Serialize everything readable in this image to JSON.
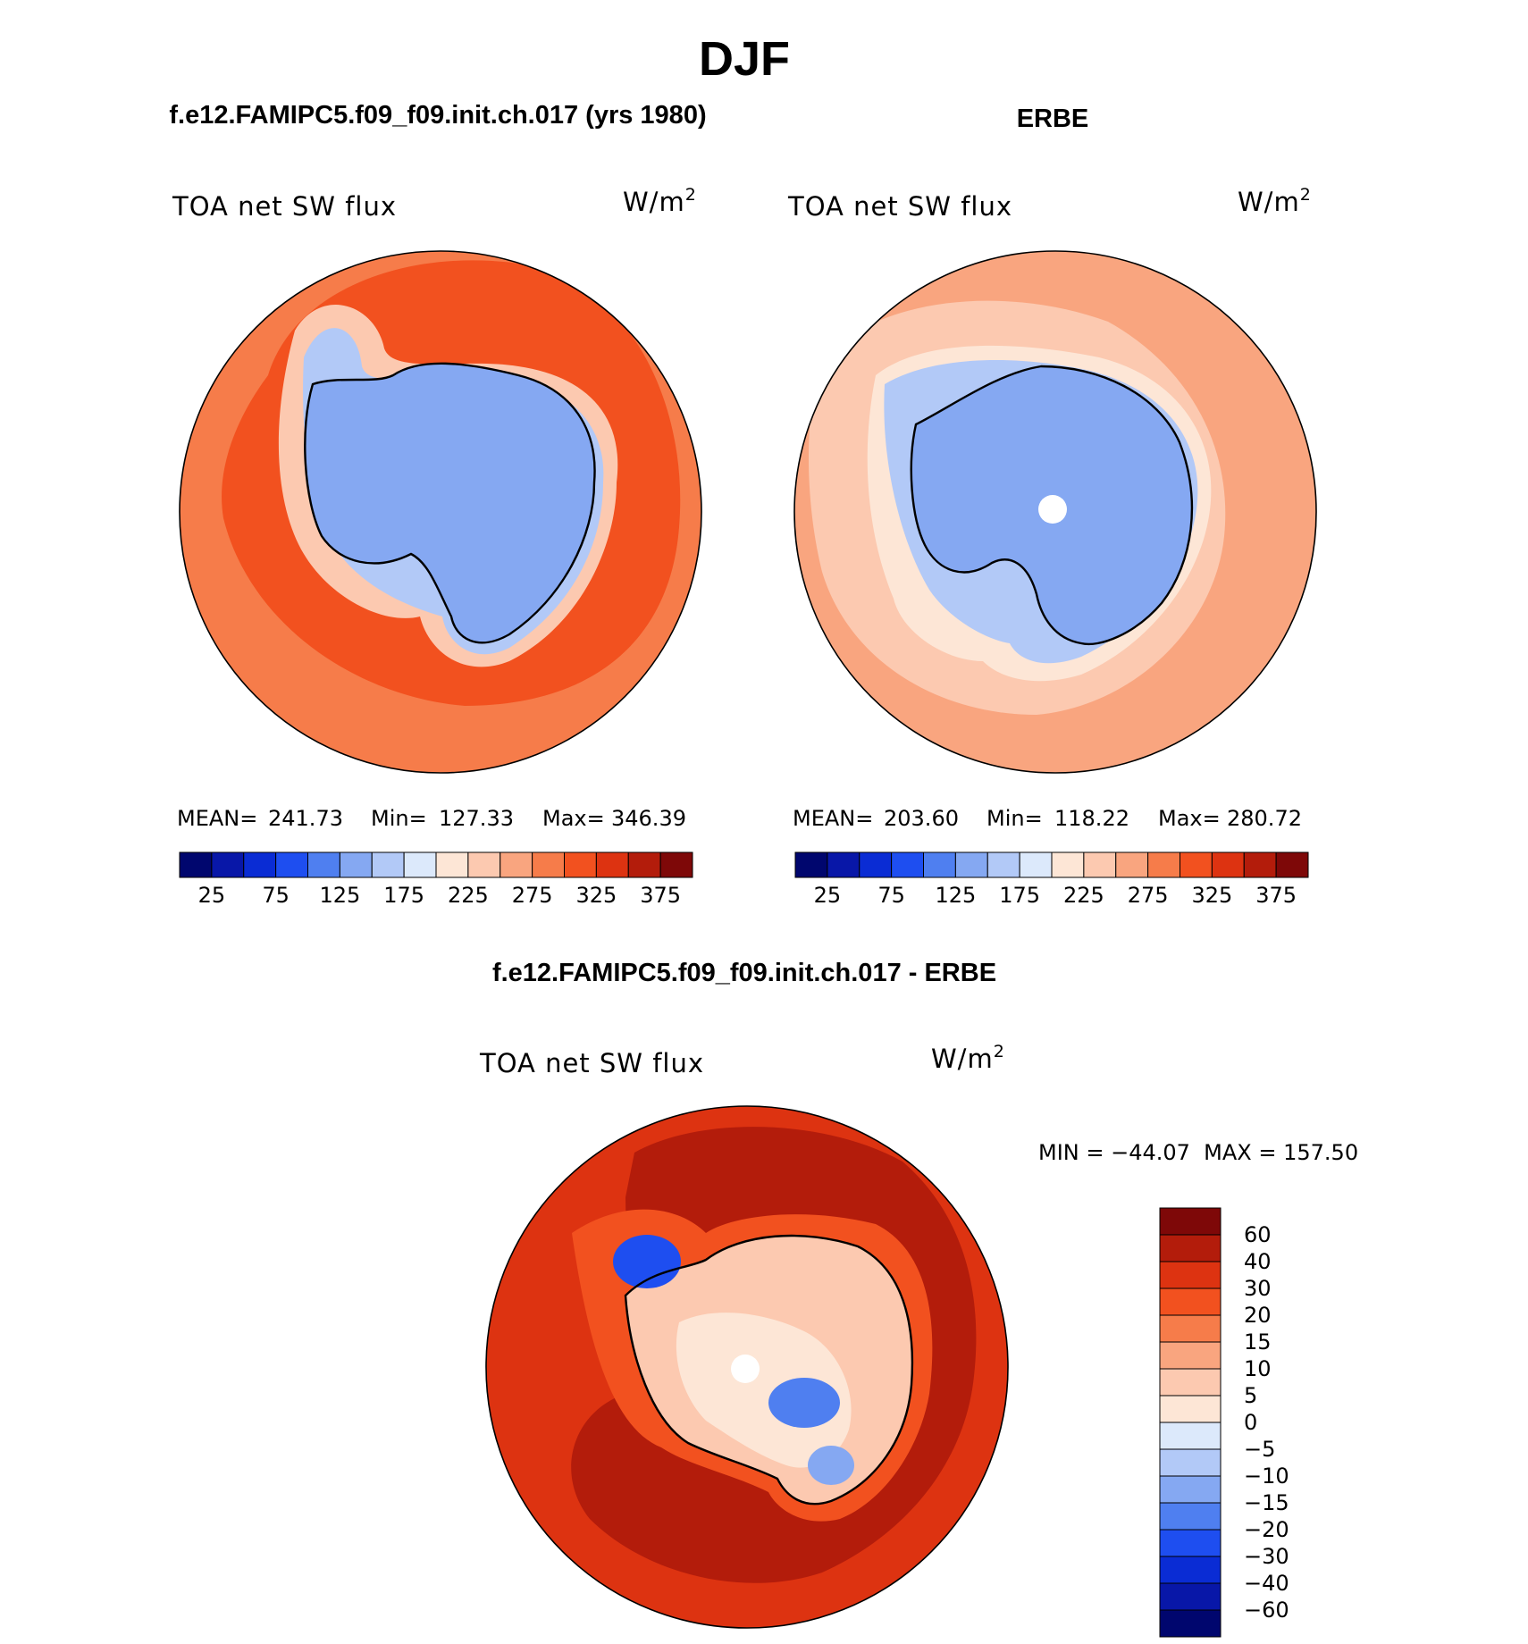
{
  "page": {
    "title": "DJF"
  },
  "chart_data": [
    {
      "type": "polar_contour_map",
      "panel_title": "f.e12.FAMIPC5.f09_f09.init.ch.017 (yrs 1980)",
      "variable": "TOA net SW flux",
      "units_base": "W/m",
      "units_exp": "2",
      "stats": {
        "mean_label": "MEAN=",
        "mean": "241.73",
        "min_label": "Min=",
        "min": "127.33",
        "max_label": "Max=",
        "max": "346.39"
      },
      "colorbar": {
        "orientation": "horizontal",
        "ticks": [
          "25",
          "75",
          "125",
          "175",
          "225",
          "275",
          "325",
          "375"
        ],
        "colors": [
          "#00066e",
          "#0817a8",
          "#0a2cd4",
          "#1e4ef0",
          "#4f7ff0",
          "#85a8f2",
          "#b2c9f7",
          "#dce9fb",
          "#fde6d6",
          "#fcc9b0",
          "#f9a57f",
          "#f67c4a",
          "#f2511f",
          "#dd3311",
          "#b31c0b",
          "#7e0808"
        ]
      },
      "field_colors": {
        "ocean": "#f2511f",
        "ocean_far": "#f67c4a",
        "shelf": "#fcc9b0",
        "coast": "#b2c9f7",
        "ice": "#85a8f2"
      }
    },
    {
      "type": "polar_contour_map",
      "panel_title": "ERBE",
      "variable": "TOA net SW flux",
      "units_base": "W/m",
      "units_exp": "2",
      "stats": {
        "mean_label": "MEAN=",
        "mean": "203.60",
        "min_label": "Min=",
        "min": "118.22",
        "max_label": "Max=",
        "max": "280.72"
      },
      "colorbar": {
        "orientation": "horizontal",
        "ticks": [
          "25",
          "75",
          "125",
          "175",
          "225",
          "275",
          "325",
          "375"
        ],
        "colors": [
          "#00066e",
          "#0817a8",
          "#0a2cd4",
          "#1e4ef0",
          "#4f7ff0",
          "#85a8f2",
          "#b2c9f7",
          "#dce9fb",
          "#fde6d6",
          "#fcc9b0",
          "#f9a57f",
          "#f67c4a",
          "#f2511f",
          "#dd3311",
          "#b31c0b",
          "#7e0808"
        ]
      },
      "field_colors": {
        "ocean": "#f9a57f",
        "ocean_far": "#fcc9b0",
        "shelf": "#fde6d6",
        "coast": "#b2c9f7",
        "ice": "#85a8f2"
      }
    },
    {
      "type": "polar_contour_map",
      "panel_title": "f.e12.FAMIPC5.f09_f09.init.ch.017 - ERBE",
      "variable": "TOA net SW flux",
      "units_base": "W/m",
      "units_exp": "2",
      "stats": {
        "minmax_text": "MIN = −44.07  MAX = 157.50"
      },
      "colorbar": {
        "orientation": "vertical",
        "ticks": [
          "60",
          "40",
          "30",
          "20",
          "15",
          "10",
          "5",
          "0",
          "−5",
          "−10",
          "−15",
          "−20",
          "−30",
          "−40",
          "−60"
        ],
        "colors": [
          "#7e0808",
          "#b31c0b",
          "#dd3311",
          "#f2511f",
          "#f67c4a",
          "#f9a57f",
          "#fcc9b0",
          "#fde6d6",
          "#dce9fb",
          "#b2c9f7",
          "#85a8f2",
          "#4f7ff0",
          "#1e4ef0",
          "#0a2cd4",
          "#0817a8",
          "#00066e"
        ]
      },
      "field_colors": {
        "ocean": "#b31c0b",
        "ocean_far": "#dd3311",
        "shelf": "#f2511f",
        "coast": "#fcc9b0",
        "ice": "#fde6d6"
      }
    }
  ]
}
